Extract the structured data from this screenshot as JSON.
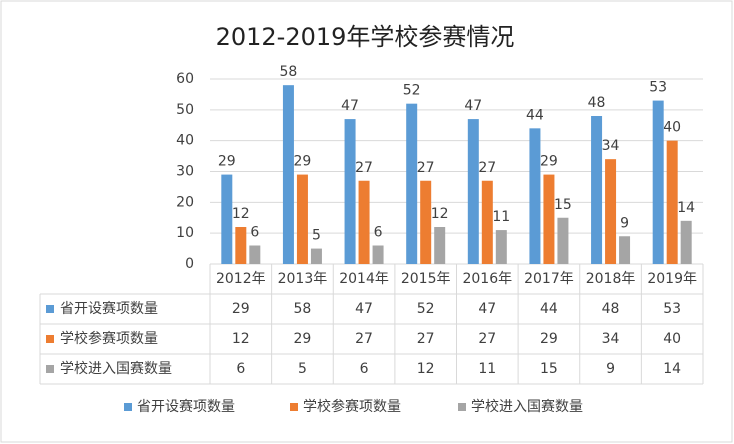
{
  "chart_data": {
    "type": "bar",
    "title": "2012-2019年学校参赛情况",
    "categories": [
      "2012年",
      "2013年",
      "2014年",
      "2015年",
      "2016年",
      "2017年",
      "2018年",
      "2019年"
    ],
    "series": [
      {
        "name": "省开设赛项数量",
        "color": "#5b9bd5",
        "values": [
          29,
          58,
          47,
          52,
          47,
          44,
          48,
          53
        ]
      },
      {
        "name": "学校参赛项数量",
        "color": "#ed7d31",
        "values": [
          12,
          29,
          27,
          27,
          27,
          29,
          34,
          40
        ]
      },
      {
        "name": "学校进入国赛数量",
        "color": "#a5a5a5",
        "values": [
          6,
          5,
          6,
          12,
          11,
          15,
          9,
          14
        ]
      }
    ],
    "ylim": [
      0,
      60
    ],
    "yticks": [
      0,
      10,
      20,
      30,
      40,
      50,
      60
    ],
    "grid": true,
    "legend": "bottom"
  }
}
